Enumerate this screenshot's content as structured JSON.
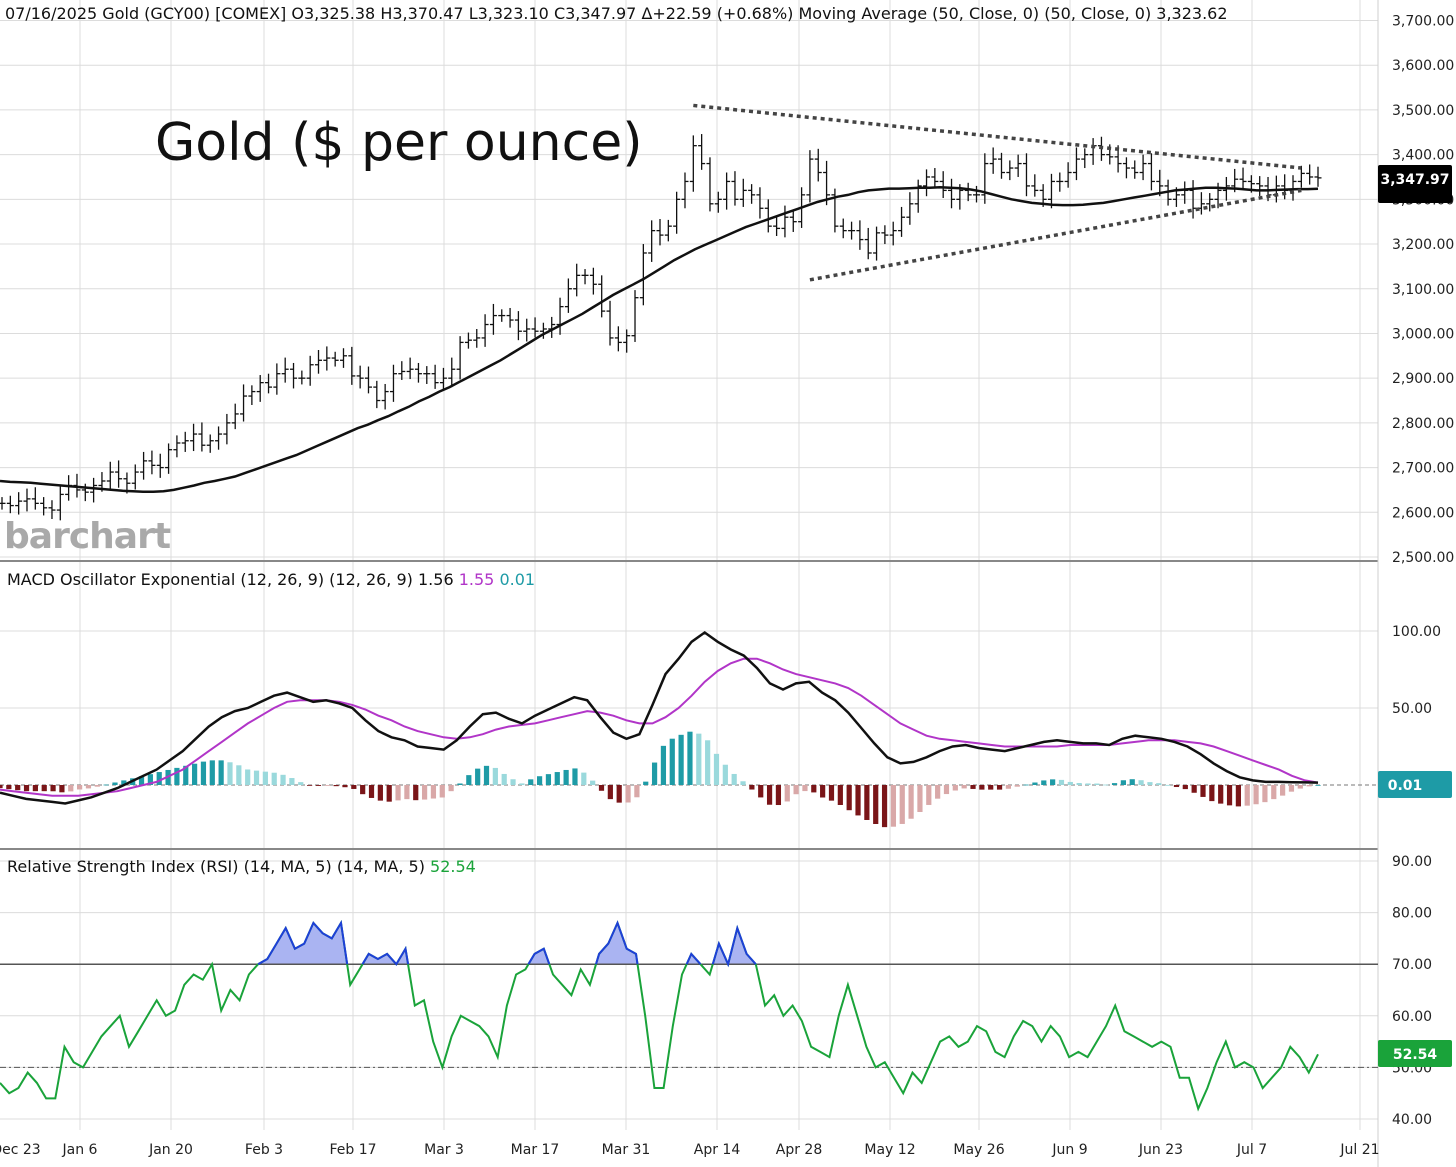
{
  "chart_data": [
    {
      "type": "bar",
      "panel": "price",
      "header": {
        "symbol_text": "07/16/2025 Gold (GCY00) [COMEX]",
        "ohlc_text": "O3,325.38 H3,370.47 L3,323.10 C3,347.97 Δ+22.59 (+0.68%)",
        "ma_label": "Moving Average (50, Close, 0)",
        "ma_params": "(50, Close, 0)",
        "ma_value": "3,323.62"
      },
      "title": "Gold ($ per ounce)",
      "watermark": "barchart",
      "last_price_label": "3,347.97",
      "ylim": [
        2500,
        3700
      ],
      "y_ticks": [
        "2,500.00",
        "2,600.00",
        "2,700.00",
        "2,800.00",
        "2,900.00",
        "3,000.00",
        "3,100.00",
        "3,200.00",
        "3,300.00",
        "3,400.00",
        "3,500.00",
        "3,600.00",
        "3,700.00"
      ],
      "y_tick_values": [
        2500,
        2600,
        2700,
        2800,
        2900,
        3000,
        3100,
        3200,
        3300,
        3400,
        3500,
        3600,
        3700
      ],
      "close_series": [
        2620,
        2615,
        2625,
        2630,
        2620,
        2610,
        2605,
        2640,
        2660,
        2650,
        2645,
        2660,
        2670,
        2690,
        2675,
        2665,
        2690,
        2715,
        2705,
        2700,
        2740,
        2755,
        2760,
        2775,
        2750,
        2760,
        2775,
        2800,
        2820,
        2860,
        2870,
        2890,
        2880,
        2910,
        2920,
        2900,
        2900,
        2930,
        2940,
        2945,
        2940,
        2950,
        2905,
        2900,
        2880,
        2850,
        2870,
        2910,
        2915,
        2920,
        2910,
        2910,
        2890,
        2900,
        2920,
        2980,
        2985,
        2990,
        3020,
        3040,
        3040,
        3030,
        3005,
        3010,
        3005,
        3010,
        3020,
        3060,
        3100,
        3130,
        3130,
        3110,
        3050,
        2990,
        2980,
        2995,
        3080,
        3180,
        3230,
        3220,
        3240,
        3300,
        3340,
        3420,
        3380,
        3290,
        3300,
        3340,
        3300,
        3320,
        3310,
        3280,
        3240,
        3235,
        3260,
        3250,
        3310,
        3390,
        3360,
        3310,
        3240,
        3230,
        3230,
        3210,
        3180,
        3225,
        3220,
        3230,
        3260,
        3290,
        3330,
        3350,
        3340,
        3320,
        3300,
        3320,
        3310,
        3310,
        3380,
        3390,
        3360,
        3370,
        3380,
        3330,
        3320,
        3300,
        3340,
        3340,
        3360,
        3390,
        3400,
        3420,
        3400,
        3395,
        3380,
        3370,
        3360,
        3380,
        3340,
        3330,
        3300,
        3310,
        3320,
        3280,
        3290,
        3300,
        3320,
        3330,
        3345,
        3340,
        3335,
        3330,
        3310,
        3330,
        3320,
        3340,
        3358,
        3350,
        3348
      ],
      "ma_series": [
        2670,
        2668,
        2667,
        2666,
        2664,
        2662,
        2660,
        2658,
        2656,
        2654,
        2652,
        2650,
        2648,
        2647,
        2646,
        2646,
        2647,
        2650,
        2655,
        2660,
        2666,
        2670,
        2675,
        2680,
        2688,
        2696,
        2704,
        2712,
        2720,
        2728,
        2738,
        2748,
        2758,
        2768,
        2778,
        2788,
        2796,
        2806,
        2815,
        2826,
        2836,
        2848,
        2858,
        2870,
        2880,
        2892,
        2904,
        2916,
        2928,
        2940,
        2954,
        2968,
        2982,
        2996,
        3008,
        3020,
        3032,
        3044,
        3058,
        3072,
        3086,
        3098,
        3110,
        3122,
        3136,
        3150,
        3164,
        3176,
        3188,
        3198,
        3208,
        3218,
        3228,
        3238,
        3246,
        3254,
        3262,
        3270,
        3278,
        3286,
        3294,
        3300,
        3306,
        3310,
        3316,
        3320,
        3322,
        3324,
        3324,
        3325,
        3326,
        3326,
        3327,
        3326,
        3325,
        3322,
        3318,
        3312,
        3306,
        3300,
        3296,
        3292,
        3290,
        3288,
        3287,
        3287,
        3288,
        3290,
        3292,
        3296,
        3300,
        3304,
        3308,
        3312,
        3316,
        3320,
        3322,
        3324,
        3326,
        3326,
        3325,
        3324,
        3322,
        3320,
        3320,
        3321,
        3322,
        3323,
        3323,
        3323.62
      ],
      "trendlines": {
        "upper": [
          [
            83,
            3510
          ],
          [
            156,
            3370
          ]
        ],
        "lower": [
          [
            97,
            3120
          ],
          [
            156,
            3320
          ]
        ]
      }
    },
    {
      "type": "line",
      "panel": "macd",
      "label": "MACD Oscillator Exponential (12, 26, 9)",
      "params": "(12, 26, 9)",
      "macd_value": "1.56",
      "signal_value": "1.55",
      "hist_value": "0.01",
      "badge": "0.01",
      "ylim": [
        -50,
        130
      ],
      "y_ticks": [
        "50.00",
        "100.00"
      ],
      "y_tick_values": [
        50,
        100
      ],
      "macd_series": [
        -5,
        -7,
        -9,
        -10,
        -11,
        -12,
        -10,
        -8,
        -5,
        -2,
        2,
        6,
        10,
        16,
        22,
        30,
        38,
        44,
        48,
        50,
        54,
        58,
        60,
        57,
        54,
        55,
        53,
        50,
        42,
        35,
        31,
        29,
        25,
        24,
        23,
        29,
        38,
        46,
        47,
        43,
        40,
        45,
        49,
        53,
        57,
        55,
        44,
        34,
        30,
        33,
        52,
        72,
        82,
        93,
        99,
        93,
        88,
        84,
        76,
        66,
        62,
        66,
        67,
        60,
        55,
        47,
        37,
        27,
        18,
        14,
        15,
        18,
        22,
        25,
        26,
        24,
        23,
        22,
        24,
        26,
        28,
        29,
        28,
        27,
        27,
        26,
        30,
        32,
        31,
        30,
        28,
        25,
        20,
        14,
        9,
        5,
        3,
        2,
        2,
        1.8,
        1.7,
        1.56
      ],
      "signal_series": [
        -3,
        -4,
        -5,
        -6,
        -7,
        -7,
        -7,
        -6,
        -5,
        -4,
        -2,
        0,
        2,
        6,
        10,
        16,
        22,
        28,
        34,
        40,
        45,
        50,
        54,
        55,
        55,
        55,
        54,
        52,
        49,
        45,
        42,
        38,
        35,
        33,
        31,
        30,
        31,
        33,
        36,
        38,
        39,
        40,
        42,
        44,
        46,
        48,
        47,
        45,
        42,
        40,
        40,
        44,
        50,
        58,
        67,
        74,
        79,
        82,
        82,
        79,
        75,
        72,
        70,
        68,
        66,
        63,
        58,
        52,
        46,
        40,
        36,
        32,
        30,
        29,
        28,
        27,
        26,
        25,
        25,
        25,
        25,
        25,
        26,
        26,
        26,
        26,
        27,
        28,
        29,
        29,
        29,
        28,
        27,
        25,
        22,
        19,
        16,
        13,
        10,
        6,
        3,
        1.55
      ]
    },
    {
      "type": "line",
      "panel": "rsi",
      "label": "Relative Strength Index (RSI) (14, MA, 5)",
      "params": "(14, MA, 5)",
      "value": "52.54",
      "badge": "52.54",
      "ylim": [
        38,
        92
      ],
      "y_ticks": [
        "40.00",
        "50.00",
        "60.00",
        "70.00",
        "80.00",
        "90.00"
      ],
      "y_tick_values": [
        40,
        50,
        60,
        70,
        80,
        90
      ],
      "overbought": 70,
      "midline": 50,
      "rsi_series": [
        47,
        45,
        46,
        49,
        47,
        44,
        44,
        54,
        51,
        50,
        53,
        56,
        58,
        60,
        54,
        57,
        60,
        63,
        60,
        61,
        66,
        68,
        67,
        70,
        61,
        65,
        63,
        68,
        70,
        71,
        74,
        77,
        73,
        74,
        78,
        76,
        75,
        78,
        66,
        69,
        72,
        71,
        72,
        70,
        73,
        62,
        63,
        55,
        50,
        56,
        60,
        59,
        58,
        56,
        52,
        62,
        68,
        69,
        72,
        73,
        68,
        66,
        64,
        69,
        66,
        72,
        74,
        78,
        73,
        72,
        60,
        46,
        46,
        58,
        68,
        72,
        70,
        68,
        74,
        70,
        77,
        72,
        70,
        62,
        64,
        60,
        62,
        59,
        54,
        53,
        52,
        60,
        66,
        60,
        54,
        50,
        51,
        48,
        45,
        49,
        47,
        51,
        55,
        56,
        54,
        55,
        58,
        57,
        53,
        52,
        56,
        59,
        58,
        55,
        58,
        56,
        52,
        53,
        52,
        55,
        58,
        62,
        57,
        56,
        55,
        54,
        55,
        54,
        48,
        48,
        42,
        46,
        51,
        55,
        50,
        51,
        50,
        46,
        48,
        50,
        54,
        52,
        49,
        52.54
      ]
    }
  ],
  "x_axis": {
    "labels": [
      "Dec 23",
      "Jan 6",
      "Jan 20",
      "Feb 3",
      "Feb 17",
      "Mar 3",
      "Mar 17",
      "Mar 31",
      "Apr 14",
      "Apr 28",
      "May 12",
      "May 26",
      "Jun 9",
      "Jun 23",
      "Jul 7",
      "Jul 21"
    ]
  },
  "colors": {
    "price_bar": "#111111",
    "ma_line": "#111111",
    "trendline": "#444444",
    "macd_line": "#111111",
    "signal_line": "#b135c8",
    "hist_pos_up": "#1e9ba6",
    "hist_pos_down": "#9ad9dc",
    "hist_neg_down": "#7a1518",
    "hist_neg_up": "#d9a8a8",
    "hist_value_color": "#1e9ba6",
    "signal_value_color": "#b135c8",
    "rsi_line": "#1aa33a",
    "rsi_overbought_line": "#1e3fd8",
    "rsi_overbought_fill": "#aab4f2",
    "rsi_value_color": "#1aa33a",
    "badge_macd": "#1e9ba6",
    "badge_rsi": "#1aa33a",
    "badge_price": "#000000",
    "grid": "#dcdcdc"
  }
}
